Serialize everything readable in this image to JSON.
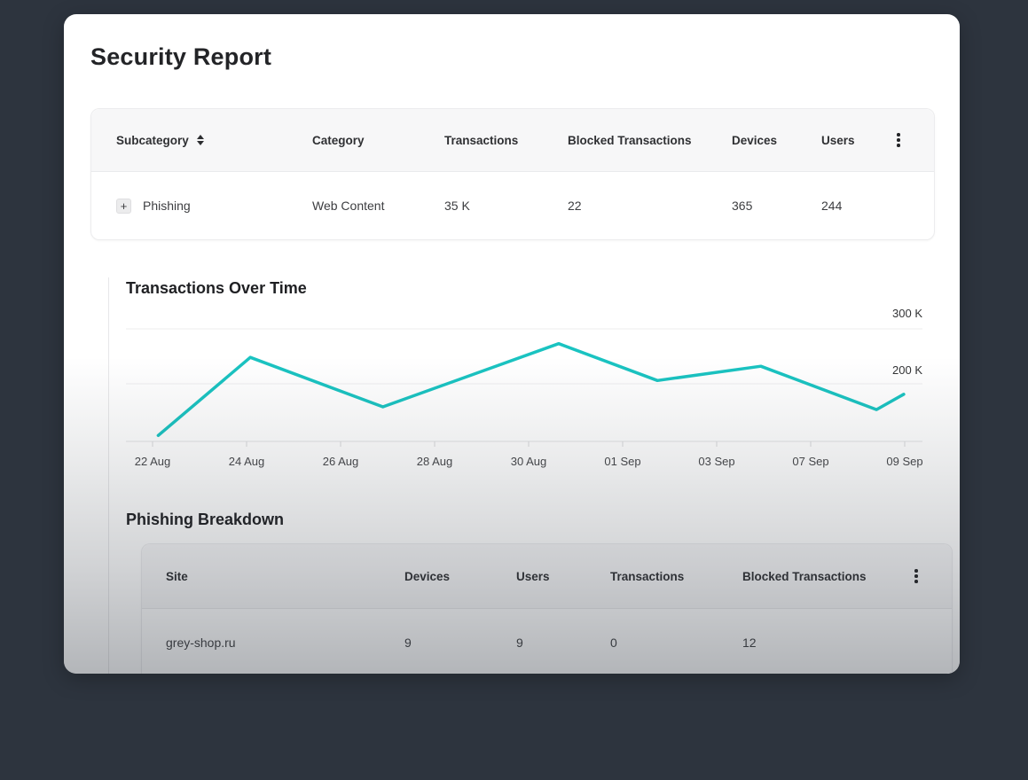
{
  "page": {
    "background": "#2d343e",
    "accent": "#1ac3c1"
  },
  "title": "Security Report",
  "summary_table": {
    "columns": [
      "Subcategory",
      "Category",
      "Transactions",
      "Blocked Transactions",
      "Devices",
      "Users"
    ],
    "sorted_column": "Subcategory",
    "row": {
      "expander": "+",
      "subcategory": "Phishing",
      "category": "Web Content",
      "transactions": "35 K",
      "blocked_transactions": "22",
      "devices": "365",
      "users": "244"
    }
  },
  "chart_section": {
    "title": "Transactions Over Time"
  },
  "chart_data": {
    "type": "line",
    "title": "Transactions Over Time",
    "x_ticks": [
      "22 Aug",
      "24 Aug",
      "26 Aug",
      "28 Aug",
      "30 Aug",
      "01 Sep",
      "03 Sep",
      "07 Sep",
      "09 Sep"
    ],
    "y_ticks": [
      "200 K",
      "300 K"
    ],
    "y_gridlines_k": [
      200,
      300
    ],
    "ylim_k": [
      95,
      310
    ],
    "grid": true,
    "legend": false,
    "series": [
      {
        "name": "Transactions",
        "color": "#1ac3c1",
        "points": [
          {
            "date": "22 Aug",
            "value_k": 106,
            "tick_pos": 0.06
          },
          {
            "date": "24 Aug",
            "value_k": 248,
            "tick_pos": 1.04
          },
          {
            "date": "27 Aug",
            "value_k": 158,
            "tick_pos": 2.45
          },
          {
            "date": "31 Aug",
            "value_k": 273,
            "tick_pos": 4.32
          },
          {
            "date": "02 Sep",
            "value_k": 206,
            "tick_pos": 5.37
          },
          {
            "date": "05 Sep",
            "value_k": 232,
            "tick_pos": 6.47
          },
          {
            "date": "08 Sep",
            "value_k": 153,
            "tick_pos": 7.7
          },
          {
            "date": "09 Sep",
            "value_k": 181,
            "tick_pos": 7.99
          }
        ]
      }
    ]
  },
  "breakdown_section": {
    "title": "Phishing Breakdown"
  },
  "breakdown_table": {
    "columns": [
      "Site",
      "Devices",
      "Users",
      "Transactions",
      "Blocked Transactions"
    ],
    "rows": [
      {
        "site": "grey-shop.ru",
        "devices": "9",
        "users": "9",
        "transactions": "0",
        "blocked_transactions": "12"
      }
    ]
  },
  "icons": {
    "sort": "up-down-triangles",
    "kebab": "vertical-dots",
    "expand": "plus"
  }
}
